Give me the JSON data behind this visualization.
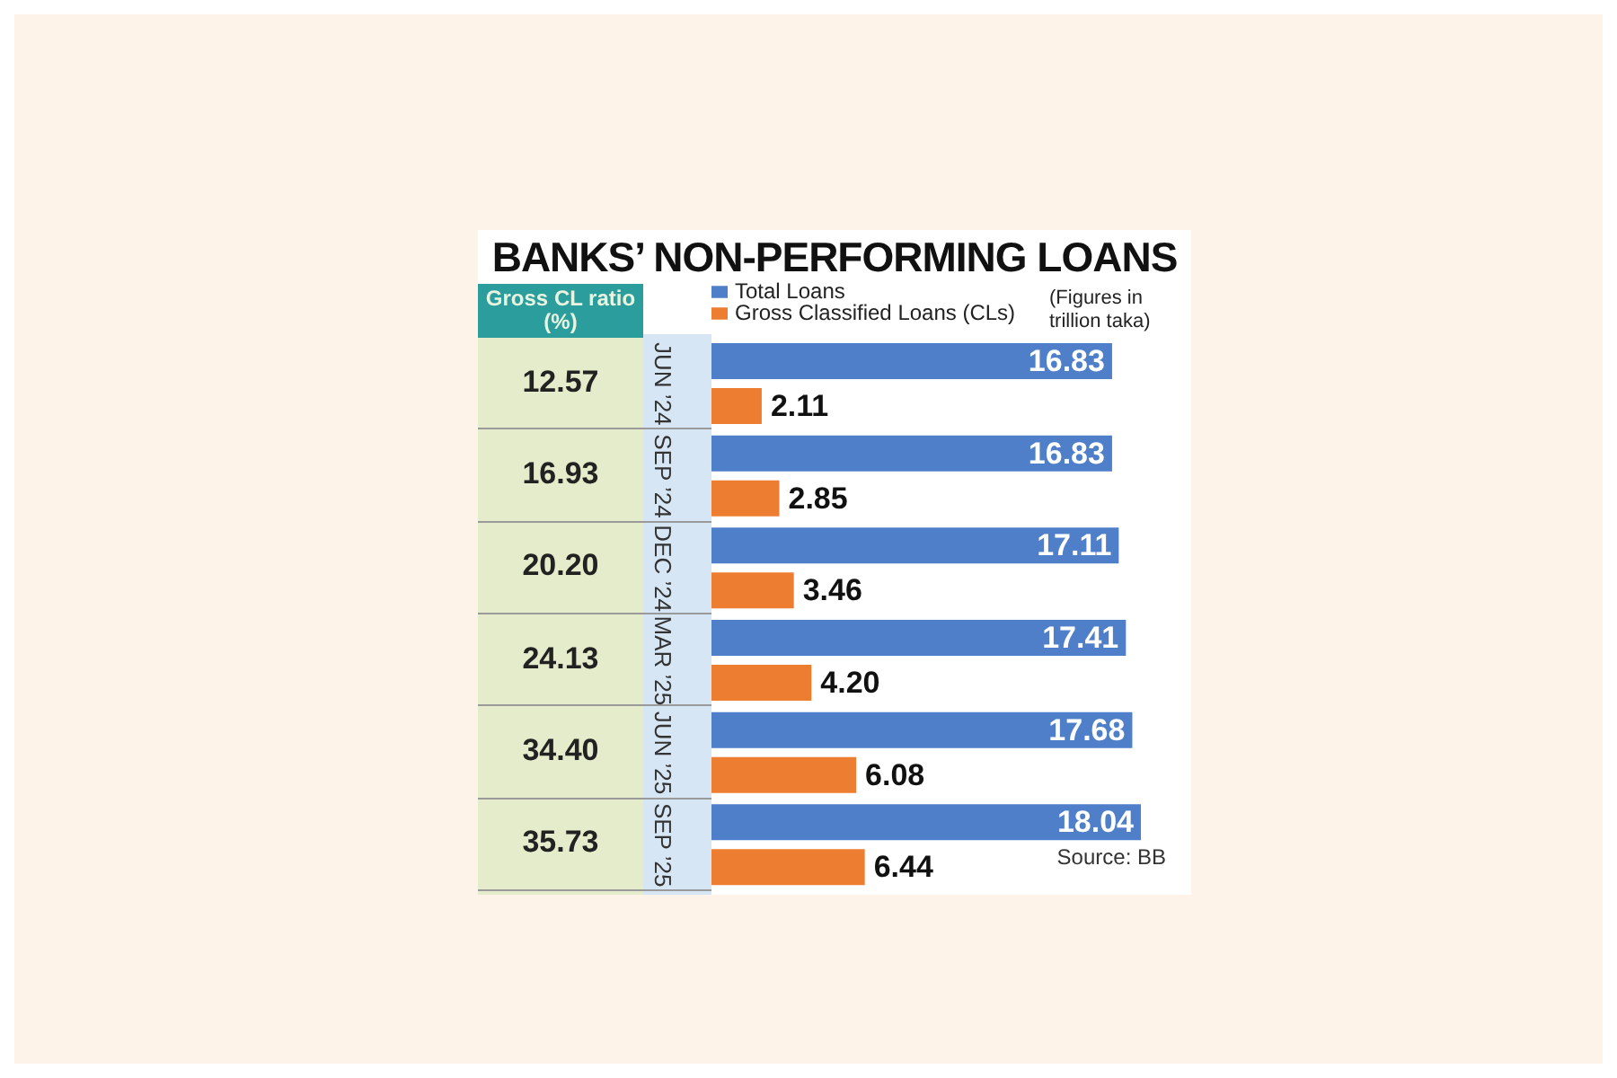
{
  "chart_data": {
    "type": "bar",
    "orientation": "horizontal",
    "title": "BANKS’ NON-PERFORMING LOANS",
    "categories": [
      "JUN ’24",
      "SEP ’24",
      "DEC ’24",
      "MAR ’25",
      "JUN ’25",
      "SEP ’25"
    ],
    "series": [
      {
        "name": "Total Loans",
        "color": "#4f7fc9",
        "values": [
          16.83,
          16.83,
          17.11,
          17.41,
          17.68,
          18.04
        ],
        "value_labels": [
          "16.83",
          "16.83",
          "17.11",
          "17.41",
          "17.68",
          "18.04"
        ]
      },
      {
        "name": "Gross Classified Loans (CLs)",
        "color": "#ed7d31",
        "values": [
          2.11,
          2.85,
          3.46,
          4.2,
          6.08,
          6.44
        ],
        "value_labels": [
          "2.11",
          "2.85",
          "3.46",
          "4.20",
          "6.08",
          "6.44"
        ]
      }
    ],
    "legend": "top",
    "annotations": [
      "Gross CL ratio (%)",
      "(Figures in trillion taka)",
      "Source: BB",
      "12.57",
      "16.93",
      "20.20",
      "24.13",
      "34.40",
      "35.73"
    ]
  }
}
